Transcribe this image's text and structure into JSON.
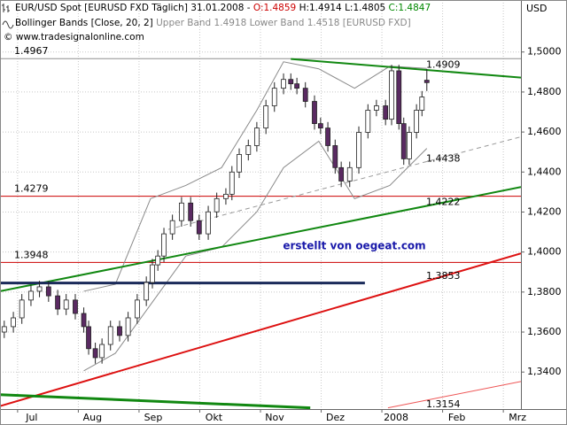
{
  "chart_data": {
    "type": "candlestick",
    "title": "EUR/USD Spot [EURUSD FXD  Täglich] 31.01.2008 -",
    "quote": [
      {
        "text": "O:1.4859",
        "color": "#cc0000"
      },
      {
        "text": "H:1.4914 L:1.4805",
        "color": "#000000"
      },
      {
        "text": "C:1.4847",
        "color": "#008800"
      }
    ],
    "indicator": "Bollinger Bands [Close, 20, 2]",
    "indicator_values": "Upper Band 1.4918 Lower Band 1.4518 [EURUSD FXD]",
    "copyright": "© www.tradesignalonline.com",
    "annotation": "erstellt von oegeat.com",
    "y_axis_label": "USD",
    "xlim": [
      6.71,
      15.29
    ],
    "xticks": [
      {
        "value": 7,
        "label": "Jul"
      },
      {
        "value": 8,
        "label": "Aug"
      },
      {
        "value": 9,
        "label": "Sep"
      },
      {
        "value": 10,
        "label": "Okt"
      },
      {
        "value": 11,
        "label": "Nov"
      },
      {
        "value": 12,
        "label": "Dez"
      },
      {
        "value": 13,
        "label": "2008"
      },
      {
        "value": 14,
        "label": "Feb"
      },
      {
        "value": 15,
        "label": "Mrz"
      }
    ],
    "ylim": [
      1.3215,
      1.526
    ],
    "yticks": [
      {
        "value": 1.34,
        "label": "1,3400"
      },
      {
        "value": 1.36,
        "label": "1,3600"
      },
      {
        "value": 1.38,
        "label": "1,3800"
      },
      {
        "value": 1.4,
        "label": "1,4000"
      },
      {
        "value": 1.42,
        "label": "1,4200"
      },
      {
        "value": 1.44,
        "label": "1,4400"
      },
      {
        "value": 1.46,
        "label": "1,4600"
      },
      {
        "value": 1.48,
        "label": "1,4800"
      },
      {
        "value": 1.5,
        "label": "1,5000"
      }
    ],
    "grid": true,
    "up_color": "#ffffff",
    "down_color": "#5a2a62",
    "x": [
      6.78,
      6.93,
      7.07,
      7.22,
      7.36,
      7.51,
      7.66,
      7.8,
      7.95,
      8.09,
      8.17,
      8.28,
      8.39,
      8.53,
      8.68,
      8.82,
      8.97,
      9.12,
      9.22,
      9.31,
      9.41,
      9.55,
      9.7,
      9.85,
      9.99,
      10.14,
      10.28,
      10.43,
      10.53,
      10.65,
      10.8,
      10.94,
      11.09,
      11.23,
      11.38,
      11.5,
      11.6,
      11.74,
      11.89,
      11.99,
      12.11,
      12.23,
      12.33,
      12.47,
      12.62,
      12.77,
      12.91,
      13.06,
      13.16,
      13.28,
      13.36,
      13.45,
      13.57,
      13.66,
      13.74
    ],
    "open": [
      1.36,
      1.3627,
      1.3671,
      1.376,
      1.3804,
      1.3826,
      1.3781,
      1.3715,
      1.376,
      1.3693,
      1.3627,
      1.3517,
      1.3472,
      1.3538,
      1.3627,
      1.3583,
      1.3671,
      1.376,
      1.3848,
      1.3936,
      1.398,
      1.4091,
      1.4157,
      1.4245,
      1.4157,
      1.4091,
      1.4201,
      1.4267,
      1.4289,
      1.44,
      1.4488,
      1.4532,
      1.462,
      1.4731,
      1.4819,
      1.4863,
      1.4841,
      1.4819,
      1.4753,
      1.4642,
      1.462,
      1.4532,
      1.4422,
      1.4355,
      1.4422,
      1.4598,
      1.4709,
      1.4731,
      1.4664,
      1.4906,
      1.4642,
      1.4466,
      1.4598,
      1.4709,
      1.4859
    ],
    "high": [
      1.3657,
      1.3701,
      1.379,
      1.3834,
      1.3856,
      1.3856,
      1.3811,
      1.379,
      1.379,
      1.3723,
      1.3657,
      1.3547,
      1.3568,
      1.3657,
      1.3657,
      1.3701,
      1.379,
      1.3878,
      1.3966,
      1.401,
      1.4121,
      1.4187,
      1.4275,
      1.4275,
      1.4187,
      1.4231,
      1.4297,
      1.4319,
      1.443,
      1.4518,
      1.4562,
      1.465,
      1.4761,
      1.4849,
      1.4893,
      1.4893,
      1.4871,
      1.4849,
      1.4783,
      1.4672,
      1.465,
      1.4562,
      1.4452,
      1.4452,
      1.4628,
      1.4739,
      1.4761,
      1.4761,
      1.4936,
      1.4936,
      1.4672,
      1.4628,
      1.4739,
      1.4805,
      1.4914
    ],
    "low": [
      1.357,
      1.3597,
      1.3641,
      1.373,
      1.3774,
      1.3751,
      1.3685,
      1.3685,
      1.3663,
      1.3597,
      1.3487,
      1.3442,
      1.3442,
      1.3508,
      1.3553,
      1.3553,
      1.3641,
      1.373,
      1.3818,
      1.3906,
      1.395,
      1.4061,
      1.4127,
      1.4127,
      1.4061,
      1.4061,
      1.4171,
      1.4237,
      1.4259,
      1.437,
      1.4458,
      1.4502,
      1.459,
      1.4701,
      1.4789,
      1.4811,
      1.4789,
      1.4723,
      1.4612,
      1.459,
      1.4502,
      1.4392,
      1.4325,
      1.4325,
      1.4392,
      1.4568,
      1.4679,
      1.4634,
      1.4634,
      1.4612,
      1.4436,
      1.4436,
      1.4568,
      1.4679,
      1.4805
    ],
    "close": [
      1.3627,
      1.3671,
      1.376,
      1.3804,
      1.3826,
      1.3781,
      1.3715,
      1.376,
      1.3693,
      1.3627,
      1.3517,
      1.3472,
      1.3538,
      1.3627,
      1.3583,
      1.3671,
      1.376,
      1.3848,
      1.3936,
      1.398,
      1.4091,
      1.4157,
      1.4245,
      1.4157,
      1.4091,
      1.4201,
      1.4267,
      1.4289,
      1.44,
      1.4488,
      1.4532,
      1.462,
      1.4731,
      1.4819,
      1.4863,
      1.4841,
      1.4819,
      1.4753,
      1.4642,
      1.462,
      1.4532,
      1.4422,
      1.4355,
      1.4422,
      1.4598,
      1.4709,
      1.4731,
      1.4664,
      1.4906,
      1.4642,
      1.4466,
      1.4598,
      1.4709,
      1.4775,
      1.4847
    ],
    "bollinger": {
      "color": "#8a8a8a",
      "x": [
        8.09,
        8.61,
        9.19,
        9.77,
        10.36,
        10.94,
        11.38,
        11.96,
        12.55,
        13.13,
        13.74
      ],
      "upper": [
        1.3804,
        1.3839,
        1.4267,
        1.4333,
        1.4422,
        1.4709,
        1.4951,
        1.4916,
        1.4819,
        1.4929,
        1.4918
      ],
      "lower": [
        1.3406,
        1.3494,
        1.3737,
        1.398,
        1.4024,
        1.4201,
        1.4422,
        1.4554,
        1.4267,
        1.4333,
        1.4518
      ]
    },
    "levels": [
      {
        "value": 1.4967,
        "color": "#909090"
      },
      {
        "value": 1.4279,
        "color": "#cc0000"
      },
      {
        "value": 1.3948,
        "color": "#cc0000"
      }
    ],
    "trendlines": [
      {
        "x": [
          11.5,
          15.29
        ],
        "y": [
          1.4965,
          1.4872
        ],
        "color": "#118811",
        "width": 2,
        "style": "solid",
        "label": 1.4909
      },
      {
        "x": [
          9.48,
          15.29
        ],
        "y": [
          1.4113,
          1.4576
        ],
        "color": "#999999",
        "width": 1,
        "style": "dashed",
        "label": 1.4438
      },
      {
        "x": [
          6.71,
          15.29
        ],
        "y": [
          1.3804,
          1.4325
        ],
        "color": "#118811",
        "width": 2,
        "style": "solid",
        "label": 1.4222
      },
      {
        "x": [
          6.71,
          15.29
        ],
        "y": [
          1.323,
          1.3993
        ],
        "color": "#dd1111",
        "width": 2,
        "style": "solid",
        "label": 1.3853
      },
      {
        "x": [
          6.71,
          11.82
        ],
        "y": [
          1.3287,
          1.3221
        ],
        "color": "#118811",
        "width": 3,
        "style": "solid"
      },
      {
        "x": [
          13.1,
          15.29
        ],
        "y": [
          1.3221,
          1.3353
        ],
        "color": "#ee5555",
        "width": 1,
        "style": "solid",
        "label": 1.3154
      },
      {
        "x": [
          6.71,
          12.72
        ],
        "y": [
          1.3845,
          1.3845
        ],
        "color": "#1a2a5a",
        "width": 3,
        "style": "solid"
      }
    ]
  }
}
